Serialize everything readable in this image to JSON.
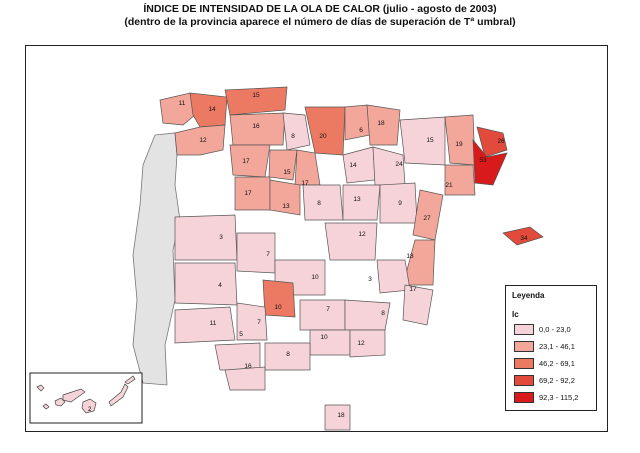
{
  "title": "ÍNDICE DE INTENSIDAD DE LA OLA DE CALOR (julio - agosto de 2003)",
  "subtitle": "(dentro de la provincia aparece el número de días de superación de Tª umbral)",
  "legend": {
    "title": "Leyenda",
    "subtitle": "Ic",
    "items": [
      {
        "label": "0,0 - 23,0",
        "color": "#f6d3d8"
      },
      {
        "label": "23,1 - 46,1",
        "color": "#f3a69a"
      },
      {
        "label": "46,2 - 69,1",
        "color": "#ec7a63"
      },
      {
        "label": "69,2 - 92,2",
        "color": "#e24a3c"
      },
      {
        "label": "92,3 - 115,2",
        "color": "#d81a1a"
      }
    ]
  },
  "colors": {
    "portugal": "#e3e3e3",
    "border": "#555555"
  },
  "provinces": [
    {
      "days": "11",
      "class": 1
    },
    {
      "days": "14",
      "class": 2
    },
    {
      "days": "15",
      "class": 2
    },
    {
      "days": "16",
      "class": 1
    },
    {
      "days": "12",
      "class": 1
    },
    {
      "days": "8",
      "class": 0
    },
    {
      "days": "20",
      "class": 2
    },
    {
      "days": "6",
      "class": 1
    },
    {
      "days": "18",
      "class": 1
    },
    {
      "days": "15",
      "class": 0
    },
    {
      "days": "19",
      "class": 1
    },
    {
      "days": "26",
      "class": 3
    },
    {
      "days": "53",
      "class": 4
    },
    {
      "days": "17",
      "class": 1
    },
    {
      "days": "15",
      "class": 1
    },
    {
      "days": "17",
      "class": 1
    },
    {
      "days": "14",
      "class": 0
    },
    {
      "days": "24",
      "class": 0
    },
    {
      "days": "21",
      "class": 1
    },
    {
      "days": "17",
      "class": 1
    },
    {
      "days": "13",
      "class": 1
    },
    {
      "days": "8",
      "class": 0
    },
    {
      "days": "13",
      "class": 0
    },
    {
      "days": "9",
      "class": 0
    },
    {
      "days": "27",
      "class": 1
    },
    {
      "days": "34",
      "class": 3
    },
    {
      "days": "3",
      "class": 0
    },
    {
      "days": "4",
      "class": 0
    },
    {
      "days": "12",
      "class": 0
    },
    {
      "days": "18",
      "class": 1
    },
    {
      "days": "7",
      "class": 0
    },
    {
      "days": "10",
      "class": 0
    },
    {
      "days": "3",
      "class": 0
    },
    {
      "days": "10",
      "class": 2
    },
    {
      "days": "17",
      "class": 0
    },
    {
      "days": "11",
      "class": 0
    },
    {
      "days": "7",
      "class": 0
    },
    {
      "days": "7",
      "class": 0
    },
    {
      "days": "8",
      "class": 0
    },
    {
      "days": "5",
      "class": 0
    },
    {
      "days": "10",
      "class": 0
    },
    {
      "days": "12",
      "class": 0
    },
    {
      "days": "8",
      "class": 0
    },
    {
      "days": "16",
      "class": 0
    },
    {
      "days": "2",
      "class": 0
    },
    {
      "days": "18",
      "class": 0
    }
  ]
}
